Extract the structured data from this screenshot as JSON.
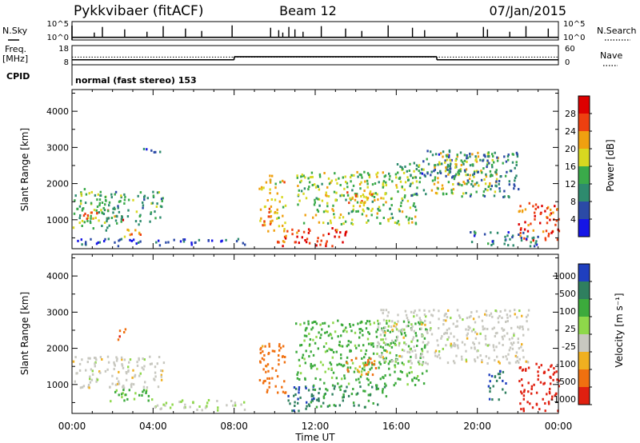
{
  "header": {
    "station": "Pykkvibaer (fitACF)",
    "beam": "Beam 12",
    "date": "07/Jan/2015"
  },
  "nsky_panel": {
    "left_label": "N.Sky",
    "right_label": "N.Search",
    "left_ticks": [
      "10^5",
      "10^0"
    ],
    "right_ticks": [
      "10^5",
      "10^0"
    ]
  },
  "freq_panel": {
    "left_label_1": "Freq.",
    "left_label_2": "[MHz]",
    "right_label": "Nave",
    "left_ticks": [
      "18",
      "8"
    ],
    "right_ticks": [
      "60",
      "0"
    ]
  },
  "cpid_panel": {
    "label": "CPID",
    "value": "normal (fast stereo) 153"
  },
  "chart_data": [
    {
      "type": "line",
      "name": "nsky",
      "x_unit": "hours UT",
      "x_range": [
        0,
        24
      ],
      "nsky_baseline": 3.3,
      "spike_times": [
        1.1,
        1.5,
        2.6,
        3.7,
        4.5,
        5.6,
        6.4,
        7.9,
        9.8,
        10.2,
        10.4,
        10.7,
        11.0,
        11.4,
        12.3,
        13.5,
        14.3,
        15.6,
        16.8,
        17.4,
        19.0,
        20.3,
        20.5,
        21.6,
        22.4,
        23.5
      ]
    },
    {
      "type": "line",
      "name": "frequency_nave",
      "x_unit": "hours UT",
      "freq_segments": [
        [
          0,
          8.0,
          10.6
        ],
        [
          8.0,
          18.0,
          12.2
        ],
        [
          18.0,
          24.0,
          10.6
        ]
      ],
      "nave_segments": [
        [
          0,
          24,
          12.0
        ]
      ],
      "freq_ylim": [
        8,
        18
      ]
    },
    {
      "type": "heatmap",
      "quantity": "power",
      "title": "",
      "xlabel": "",
      "ylabel": "Slant Range [km]",
      "x_ticks": [
        "00:00",
        "04:00",
        "08:00",
        "12:00",
        "16:00",
        "20:00",
        "00:00"
      ],
      "y_ticks": [
        1000,
        2000,
        3000,
        4000
      ],
      "ylim": [
        200,
        4600
      ],
      "colorbar_label": "Power [dB]",
      "colorbar_ticks": [
        4,
        8,
        12,
        16,
        20,
        24,
        28
      ],
      "colors": [
        "#1515e6",
        "#2b4aa6",
        "#2e8b6e",
        "#3aaa4a",
        "#d8d820",
        "#f0a010",
        "#ee4010",
        "#dd0000"
      ],
      "blobs": [
        {
          "t0": 0.0,
          "t1": 1.8,
          "r0": 700,
          "r1": 1900,
          "power": 14
        },
        {
          "t0": 0.5,
          "t1": 2.5,
          "r0": 1000,
          "r1": 1300,
          "power": 24
        },
        {
          "t0": 1.5,
          "t1": 4.5,
          "r0": 900,
          "r1": 1800,
          "power": 12
        },
        {
          "t0": 2.5,
          "t1": 3.5,
          "r0": 500,
          "r1": 800,
          "power": 20
        },
        {
          "t0": 0.0,
          "t1": 8.5,
          "r0": 300,
          "r1": 500,
          "power": 6
        },
        {
          "t0": 3.5,
          "t1": 4.5,
          "r0": 2900,
          "r1": 3100,
          "power": 6
        },
        {
          "t0": 9.2,
          "t1": 10.5,
          "r0": 700,
          "r1": 2300,
          "power": 20
        },
        {
          "t0": 10.0,
          "t1": 13.5,
          "r0": 300,
          "r1": 800,
          "power": 28
        },
        {
          "t0": 11.0,
          "t1": 17.0,
          "r0": 900,
          "r1": 2400,
          "power": 16
        },
        {
          "t0": 13.5,
          "t1": 15.5,
          "r0": 1400,
          "r1": 1800,
          "power": 22
        },
        {
          "t0": 16.0,
          "t1": 17.5,
          "r0": 1700,
          "r1": 2600,
          "power": 12
        },
        {
          "t0": 17.0,
          "t1": 19.0,
          "r0": 2200,
          "r1": 3000,
          "power": 8
        },
        {
          "t0": 17.7,
          "t1": 21.0,
          "r0": 1700,
          "r1": 2900,
          "power": 18
        },
        {
          "t0": 19.0,
          "t1": 22.0,
          "r0": 1600,
          "r1": 2900,
          "power": 10
        },
        {
          "t0": 22.0,
          "t1": 24.0,
          "r0": 400,
          "r1": 1500,
          "power": 26
        },
        {
          "t0": 19.5,
          "t1": 23.0,
          "r0": 300,
          "r1": 700,
          "power": 8
        }
      ]
    },
    {
      "type": "heatmap",
      "quantity": "velocity",
      "title": "",
      "xlabel": "Time UT",
      "ylabel": "Slant Range [km]",
      "x_ticks": [
        "00:00",
        "04:00",
        "08:00",
        "12:00",
        "16:00",
        "20:00",
        "00:00"
      ],
      "y_ticks": [
        1000,
        2000,
        3000,
        4000
      ],
      "ylim": [
        200,
        4600
      ],
      "colorbar_label": "Velocity [m s⁻¹]",
      "colorbar_ticks": [
        "1000",
        "500",
        "100",
        "25",
        "-25",
        "-100",
        "-500",
        "-1000"
      ],
      "colors": [
        "#1f3fbf",
        "#2f7f5f",
        "#3caa3c",
        "#8ed84a",
        "#c8c8c0",
        "#f0b020",
        "#f07010",
        "#e02010"
      ],
      "blobs": [
        {
          "t0": 0.0,
          "t1": 4.5,
          "r0": 900,
          "r1": 1800,
          "vel": 0
        },
        {
          "t0": 1.8,
          "t1": 4.0,
          "r0": 500,
          "r1": 900,
          "vel": 150
        },
        {
          "t0": 2.2,
          "t1": 2.6,
          "r0": 2200,
          "r1": 2600,
          "vel": -500
        },
        {
          "t0": 4.0,
          "t1": 8.5,
          "r0": 300,
          "r1": 600,
          "vel": 20
        },
        {
          "t0": 9.2,
          "t1": 10.5,
          "r0": 700,
          "r1": 2200,
          "vel": -200
        },
        {
          "t0": 10.5,
          "t1": 12.0,
          "r0": 300,
          "r1": 1000,
          "vel": 1000
        },
        {
          "t0": 11.5,
          "t1": 15.5,
          "r0": 400,
          "r1": 1000,
          "vel": 500
        },
        {
          "t0": 11.0,
          "t1": 17.5,
          "r0": 1000,
          "r1": 2800,
          "vel": 150
        },
        {
          "t0": 15.0,
          "t1": 22.5,
          "r0": 1600,
          "r1": 3100,
          "vel": 0
        },
        {
          "t0": 20.5,
          "t1": 21.5,
          "r0": 600,
          "r1": 1400,
          "vel": 1000
        },
        {
          "t0": 22.0,
          "t1": 24.0,
          "r0": 300,
          "r1": 1600,
          "vel": -1000
        },
        {
          "t0": 13.5,
          "t1": 15.0,
          "r0": 1300,
          "r1": 1800,
          "vel": -150
        }
      ]
    }
  ]
}
